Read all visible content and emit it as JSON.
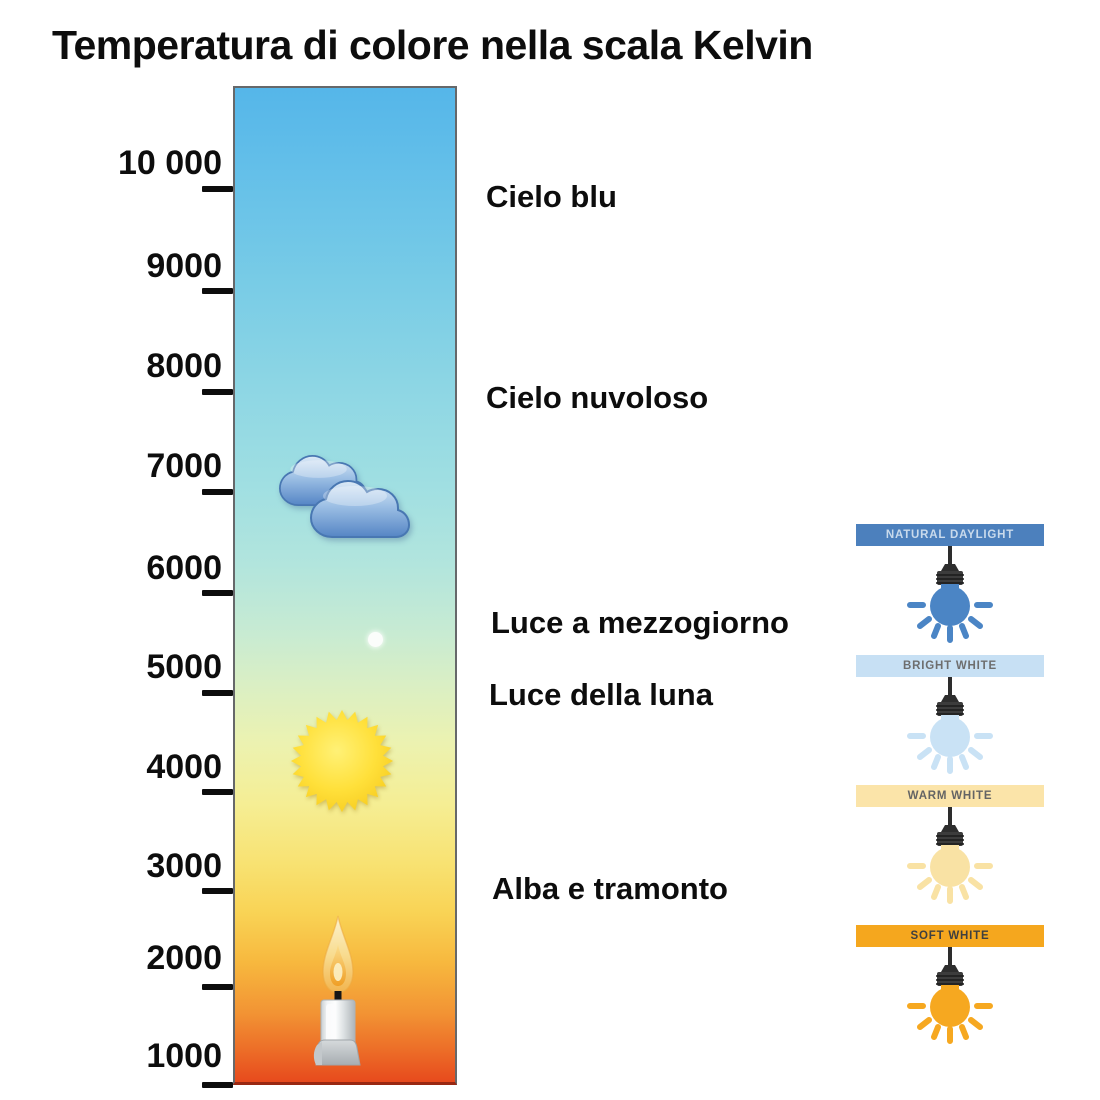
{
  "title": "Temperatura di colore nella scala Kelvin",
  "chart_data": {
    "type": "scale",
    "title": "Temperatura di colore nella scala Kelvin",
    "unit": "Kelvin",
    "axis_ticks": [
      10000,
      9000,
      8000,
      7000,
      6000,
      5000,
      4000,
      3000,
      2000,
      1000
    ],
    "gradient_top_to_bottom": [
      "#55B6E9",
      "#8DD6E4",
      "#B2E5DD",
      "#DAEFC4",
      "#F5EE94",
      "#F9D355",
      "#F29434",
      "#E74A1D"
    ],
    "annotations": [
      {
        "label": "Cielo blu",
        "approx_kelvin": 10000
      },
      {
        "label": "Cielo nuvoloso",
        "approx_kelvin": 8000
      },
      {
        "label": "Luce a mezzogiorno",
        "approx_kelvin": 5700
      },
      {
        "label": "Luce della luna",
        "approx_kelvin": 5000
      },
      {
        "label": "Alba e tramonto",
        "approx_kelvin": 3100
      }
    ],
    "icon_markers": [
      {
        "icon": "cloud",
        "approx_kelvin": 6800
      },
      {
        "icon": "moon-dot",
        "approx_kelvin": 5500
      },
      {
        "icon": "sun",
        "approx_kelvin": 4100
      },
      {
        "icon": "candle",
        "approx_kelvin": 1600
      }
    ]
  },
  "scale": {
    "unit_labels": [
      "10 000",
      "9000",
      "8000",
      "7000",
      "6000",
      "5000",
      "4000",
      "3000",
      "2000",
      "1000"
    ],
    "gradient_css": "linear-gradient(180deg,#55B6E9 0%,#63BFE9 8%,#79CCE6 20%,#8DD6E4 30%,#A0DFE2 40%,#B2E5DD 48%,#C8EBD2 55%,#DAEFC4 60%,#ECF2B0 66%,#F5EE94 72%,#F8E272 78%,#F9D355 83%,#F7B83E 88%,#F29434 93%,#EC6B27 97%,#E74A1D 100%)"
  },
  "panels": [
    {
      "label": "NATURAL DAYLIGHT",
      "banner_color": "#4C80BD",
      "label_color": "#C9DAEC",
      "bulb_color": "#4B85C5"
    },
    {
      "label": "BRIGHT WHITE",
      "banner_color": "#C7E0F4",
      "label_color": "#6E6E6E",
      "bulb_color": "#C9E2F5"
    },
    {
      "label": "WARM WHITE",
      "banner_color": "#FBE4A9",
      "label_color": "#646464",
      "bulb_color": "#F9E2A4"
    },
    {
      "label": "SOFT WHITE",
      "banner_color": "#F5A71E",
      "label_color": "#3F3F3F",
      "bulb_color": "#F6A820"
    }
  ]
}
